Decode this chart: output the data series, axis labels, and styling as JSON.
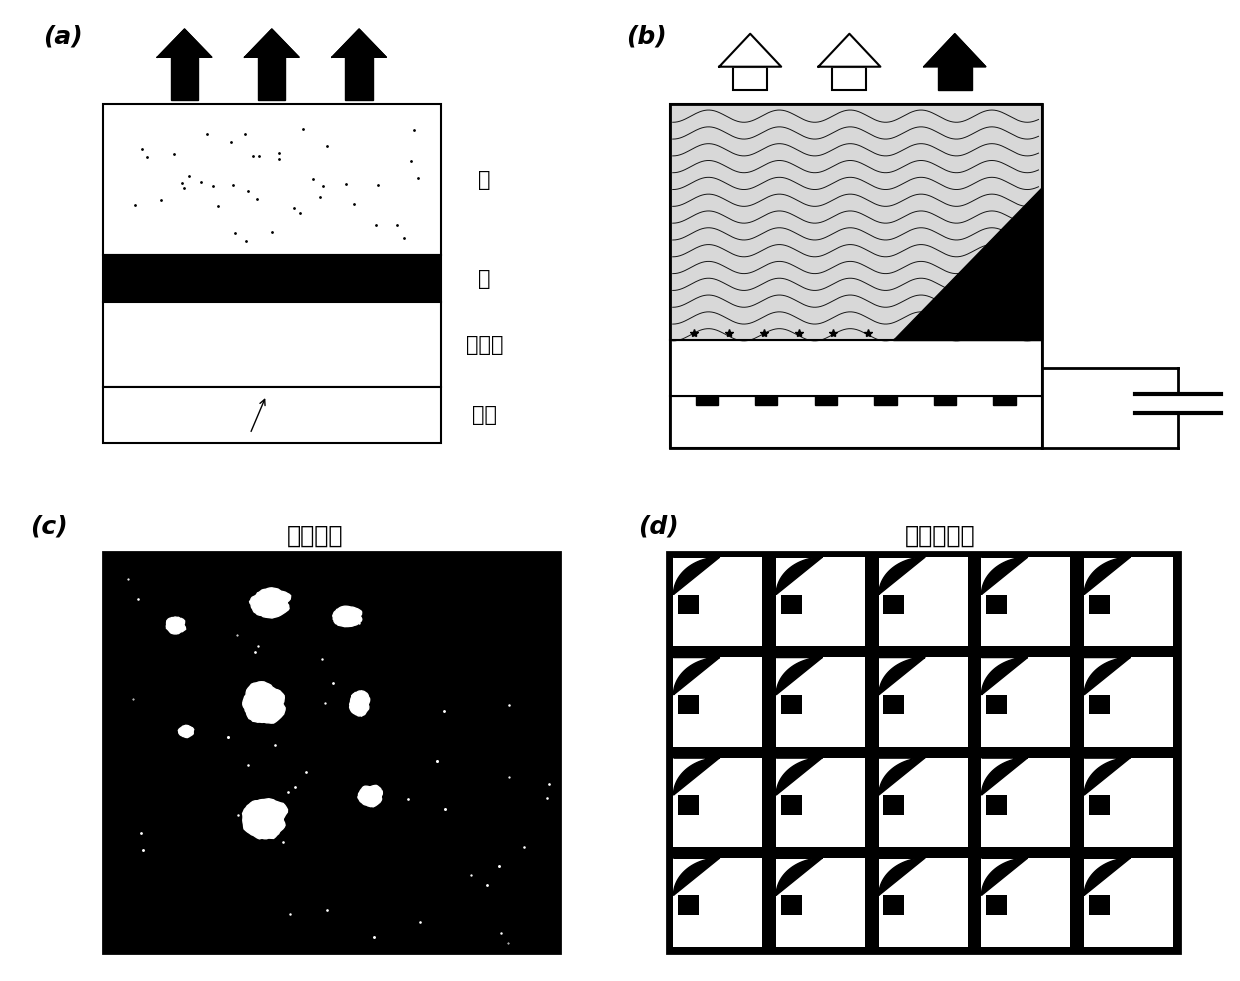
{
  "label_a": "(a)",
  "label_b": "(b)",
  "label_c": "(c)",
  "label_d": "(d)",
  "water": "水",
  "oil": "油",
  "insulator": "绦缘体",
  "electrode": "电极",
  "oil_uniform": "油层均匀",
  "oil_squeezed": "油层被挤压",
  "bg": "#ffffff"
}
